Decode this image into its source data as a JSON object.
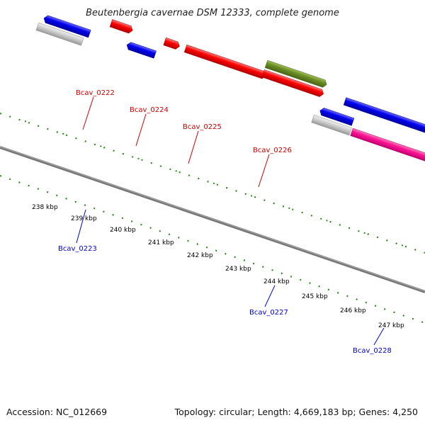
{
  "title": "Beutenbergia cavernae DSM 12333, complete genome",
  "footer": {
    "accession": "Accession: NC_012669",
    "summary": "Topology: circular; Length: 4,669,183 bp; Genes: 4,250"
  },
  "colors": {
    "backbone": "#888888",
    "tick": "#2e8b1e",
    "red_gene": "#ff0000",
    "blue_gene": "#0000ee",
    "gray_gene": "#c0c0c0",
    "olive_gene": "#6b8e23",
    "magenta_gene": "#ff1493"
  },
  "ticks": [
    "238 kbp",
    "239 kbp",
    "240 kbp",
    "241 kbp",
    "242 kbp",
    "243 kbp",
    "244 kbp",
    "245 kbp",
    "246 kbp",
    "247 kbp"
  ],
  "labels": {
    "top": [
      "Bcav_0222",
      "Bcav_0224",
      "Bcav_0225",
      "Bcav_0226"
    ],
    "bottom": [
      "Bcav_0223",
      "Bcav_0227",
      "Bcav_0228"
    ]
  }
}
